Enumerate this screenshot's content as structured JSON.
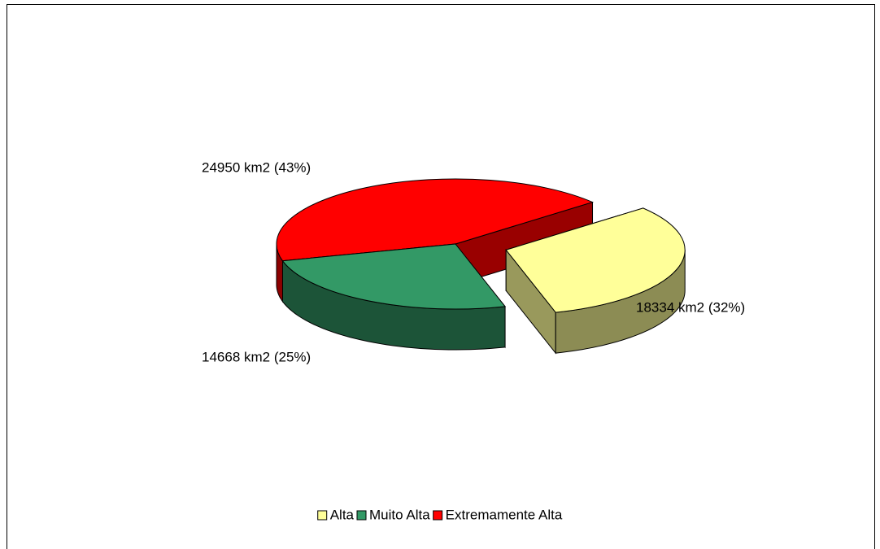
{
  "chart_data": {
    "type": "pie3d",
    "categories": [
      "Alta",
      "Muito Alta",
      "Extremamente Alta"
    ],
    "values": [
      18334,
      14668,
      24950
    ],
    "value_labels": [
      "18334 km2 (32%)",
      "14668 km2 (25%)",
      "24950 km2 (43%)"
    ],
    "colors": [
      "#ffff99",
      "#339966",
      "#ff0000"
    ],
    "legend": "bottom"
  }
}
